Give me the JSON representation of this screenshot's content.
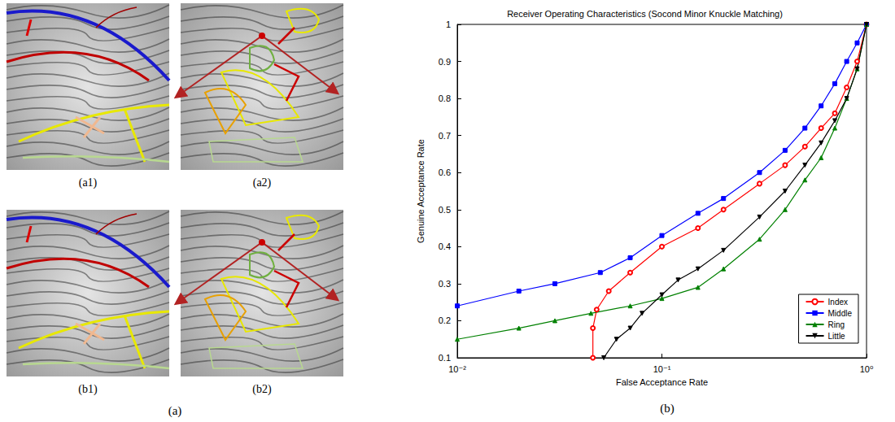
{
  "figure": {
    "panel_labels": [
      "(a)",
      "(b)"
    ],
    "image_labels": [
      "(a1)",
      "(a2)",
      "(b1)",
      "(b2)"
    ]
  },
  "chart_data": {
    "type": "line",
    "title": "Receiver Operating Characteristics (Socond Minor Knuckle Matching)",
    "x_label": "False Acceptance Rate",
    "y_label": "Genuine Acceptance Rate",
    "log": "x",
    "grid": false,
    "legend": "lower right",
    "xlim": [
      0.01,
      1
    ],
    "xticks": [
      {
        "value": 0.01,
        "label": "10⁻²"
      },
      {
        "value": 0.1,
        "label": "10⁻¹"
      },
      {
        "value": 1,
        "label": "10⁰"
      }
    ],
    "ylim": [
      0.1,
      1
    ],
    "yticks": [
      0.1,
      0.2,
      0.3,
      0.4,
      0.5,
      0.6,
      0.7,
      0.8,
      0.9,
      1
    ],
    "series": [
      {
        "name": "Index",
        "color": "#ff0000",
        "marker": "circle",
        "x": [
          0.046,
          0.046,
          0.048,
          0.055,
          0.07,
          0.1,
          0.15,
          0.2,
          0.3,
          0.4,
          0.5,
          0.6,
          0.7,
          0.8,
          0.9,
          1
        ],
        "values": [
          0.1,
          0.18,
          0.23,
          0.28,
          0.33,
          0.4,
          0.45,
          0.5,
          0.57,
          0.62,
          0.67,
          0.72,
          0.76,
          0.83,
          0.9,
          1
        ]
      },
      {
        "name": "Middle",
        "color": "#0000ff",
        "marker": "square",
        "x": [
          0.01,
          0.02,
          0.03,
          0.05,
          0.07,
          0.1,
          0.15,
          0.2,
          0.3,
          0.4,
          0.5,
          0.6,
          0.7,
          0.8,
          0.9,
          1
        ],
        "values": [
          0.24,
          0.28,
          0.3,
          0.33,
          0.37,
          0.43,
          0.49,
          0.53,
          0.6,
          0.66,
          0.72,
          0.78,
          0.84,
          0.9,
          0.95,
          1
        ]
      },
      {
        "name": "Ring",
        "color": "#008000",
        "marker": "triangle",
        "x": [
          0.01,
          0.02,
          0.03,
          0.045,
          0.07,
          0.1,
          0.15,
          0.2,
          0.3,
          0.4,
          0.5,
          0.6,
          0.7,
          0.8,
          0.9,
          1
        ],
        "values": [
          0.15,
          0.18,
          0.2,
          0.22,
          0.24,
          0.26,
          0.29,
          0.34,
          0.42,
          0.5,
          0.58,
          0.64,
          0.72,
          0.8,
          0.88,
          1
        ]
      },
      {
        "name": "Little",
        "color": "#000000",
        "marker": "triangle_down",
        "x": [
          0.052,
          0.06,
          0.07,
          0.08,
          0.1,
          0.12,
          0.15,
          0.2,
          0.3,
          0.4,
          0.5,
          0.6,
          0.7,
          0.8,
          0.9,
          1
        ],
        "values": [
          0.1,
          0.15,
          0.18,
          0.22,
          0.27,
          0.31,
          0.34,
          0.39,
          0.48,
          0.55,
          0.62,
          0.68,
          0.74,
          0.8,
          0.88,
          1
        ]
      }
    ]
  }
}
